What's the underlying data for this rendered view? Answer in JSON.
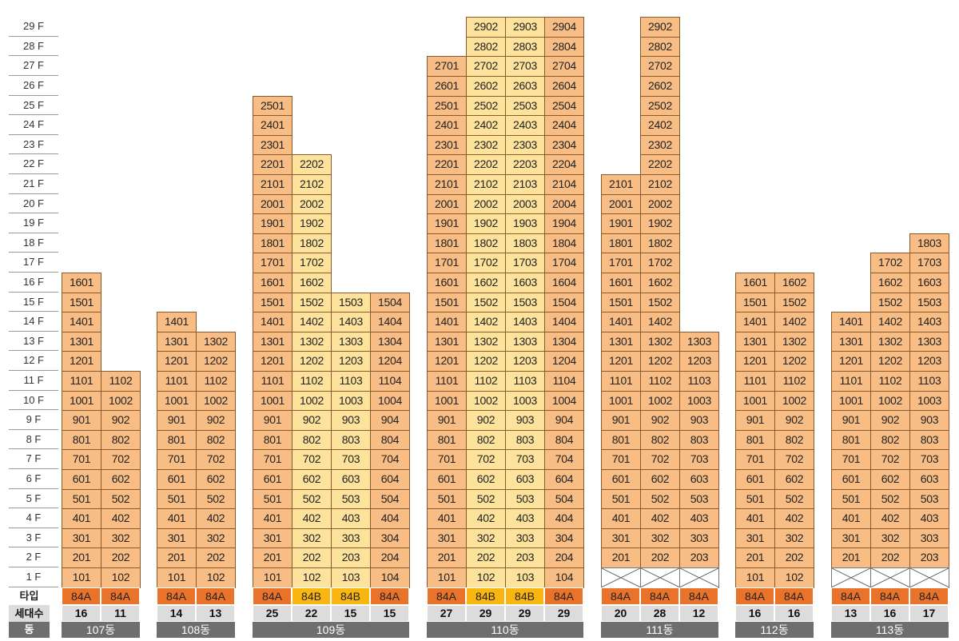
{
  "floor_labels": [
    "1 F",
    "2 F",
    "3 F",
    "4 F",
    "5 F",
    "6 F",
    "7 F",
    "8 F",
    "9 F",
    "10 F",
    "11 F",
    "12 F",
    "13 F",
    "14 F",
    "15 F",
    "16 F",
    "17 F",
    "18 F",
    "19 F",
    "20 F",
    "21 F",
    "22 F",
    "23 F",
    "24 F",
    "25 F",
    "26 F",
    "27 F",
    "28 F",
    "29 F"
  ],
  "row_labels": {
    "type": "타입",
    "households": "세대수",
    "building": "동"
  },
  "colors": {
    "type_84A": "#e9732a",
    "type_84B": "#f9b510",
    "unit_84A": "#f7bd84",
    "unit_84B": "#fde29c",
    "dong_bar": "#6e6e6e",
    "count_bg": "#dcdcdc"
  },
  "buildings": [
    {
      "name": "107동",
      "lines": [
        {
          "line": 1,
          "type": "84A",
          "households": "16",
          "floors": [
            1,
            16
          ]
        },
        {
          "line": 2,
          "type": "84A",
          "households": "11",
          "floors": [
            1,
            11
          ]
        }
      ]
    },
    {
      "name": "108동",
      "lines": [
        {
          "line": 1,
          "type": "84A",
          "households": "14",
          "floors": [
            1,
            14
          ]
        },
        {
          "line": 2,
          "type": "84A",
          "households": "13",
          "floors": [
            1,
            13
          ]
        }
      ]
    },
    {
      "name": "109동",
      "lines": [
        {
          "line": 1,
          "type": "84A",
          "households": "25",
          "floors": [
            1,
            25
          ]
        },
        {
          "line": 2,
          "type": "84B",
          "households": "22",
          "floors": [
            1,
            22
          ]
        },
        {
          "line": 3,
          "type": "84B",
          "households": "15",
          "floors": [
            1,
            15
          ]
        },
        {
          "line": 4,
          "type": "84A",
          "households": "15",
          "floors": [
            1,
            15
          ]
        }
      ]
    },
    {
      "name": "110동",
      "lines": [
        {
          "line": 1,
          "type": "84A",
          "households": "27",
          "floors": [
            1,
            27
          ]
        },
        {
          "line": 2,
          "type": "84B",
          "households": "29",
          "floors": [
            1,
            29
          ]
        },
        {
          "line": 3,
          "type": "84B",
          "households": "29",
          "floors": [
            1,
            29
          ]
        },
        {
          "line": 4,
          "type": "84A",
          "households": "29",
          "floors": [
            1,
            29
          ]
        }
      ]
    },
    {
      "name": "111동",
      "lines": [
        {
          "line": 1,
          "type": "84A",
          "households": "20",
          "floors": [
            2,
            21
          ],
          "pilotis": true
        },
        {
          "line": 2,
          "type": "84A",
          "households": "28",
          "floors": [
            2,
            29
          ],
          "pilotis": true
        },
        {
          "line": 3,
          "type": "84A",
          "households": "12",
          "floors": [
            2,
            13
          ],
          "pilotis": true
        }
      ]
    },
    {
      "name": "112동",
      "lines": [
        {
          "line": 1,
          "type": "84A",
          "households": "16",
          "floors": [
            1,
            16
          ]
        },
        {
          "line": 2,
          "type": "84A",
          "households": "16",
          "floors": [
            1,
            16
          ]
        }
      ]
    },
    {
      "name": "113동",
      "lines": [
        {
          "line": 1,
          "type": "84A",
          "households": "13",
          "floors": [
            2,
            14
          ],
          "pilotis": true
        },
        {
          "line": 2,
          "type": "84A",
          "households": "16",
          "floors": [
            2,
            17
          ],
          "pilotis": true
        },
        {
          "line": 3,
          "type": "84A",
          "households": "17",
          "floors": [
            2,
            18
          ],
          "pilotis": true
        }
      ]
    }
  ]
}
